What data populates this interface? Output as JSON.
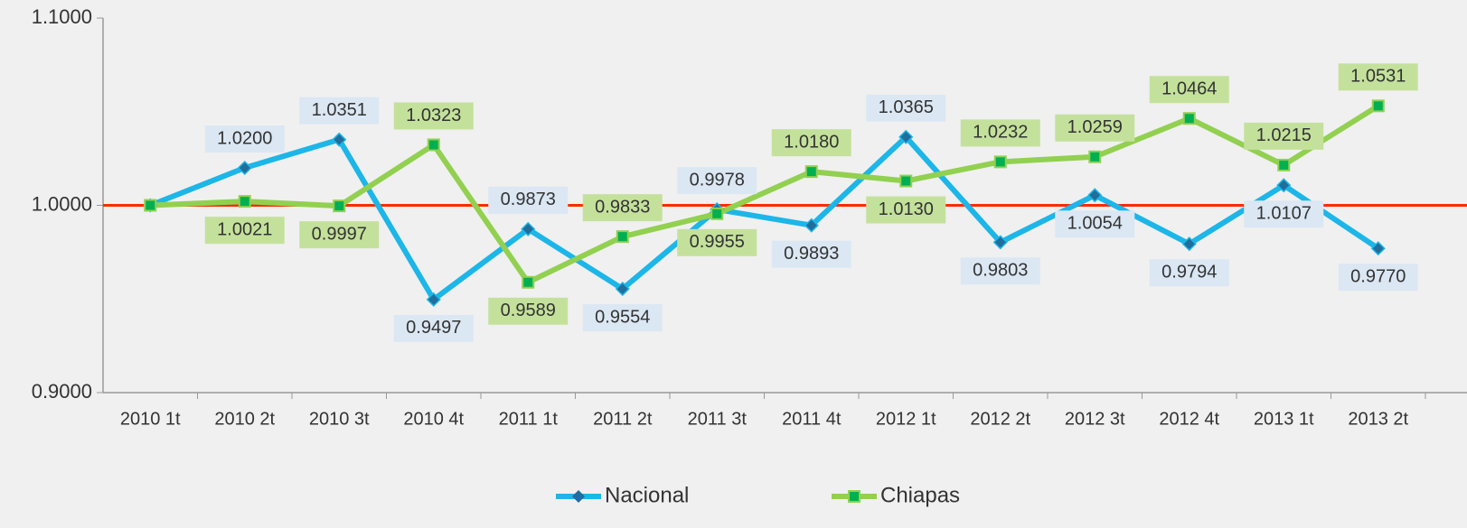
{
  "chart_data": {
    "type": "line",
    "categories": [
      "2010 1t",
      "2010 2t",
      "2010 3t",
      "2010 4t",
      "2011 1t",
      "2011 2t",
      "2011 3t",
      "2011 4t",
      "2012 1t",
      "2012 2t",
      "2012 3t",
      "2012 4t",
      "2013 1t",
      "2013 2t"
    ],
    "series": [
      {
        "name": "Nacional",
        "color": "#1cb6e8",
        "marker_color": "#1f6e9c",
        "label_background": "#dbe7f3",
        "values": [
          1.0,
          1.02,
          1.0351,
          0.9497,
          0.9873,
          0.9554,
          0.9978,
          0.9893,
          1.0365,
          0.9803,
          1.0054,
          0.9794,
          1.0107,
          0.977
        ],
        "value_labels": [
          null,
          "1.0200",
          "1.0351",
          "0.9497",
          "0.9873",
          "0.9554",
          "0.9978",
          "0.9893",
          "1.0365",
          "0.9803",
          "1.0054",
          "0.9794",
          "1.0107",
          "0.9770"
        ]
      },
      {
        "name": "Chiapas",
        "color": "#92d050",
        "marker_color": "#00b050",
        "label_background": "#c4e19c",
        "values": [
          1.0,
          1.0021,
          0.9997,
          1.0323,
          0.9589,
          0.9833,
          0.9955,
          1.018,
          1.013,
          1.0232,
          1.0259,
          1.0464,
          1.0215,
          1.0531
        ],
        "value_labels": [
          null,
          "1.0021",
          "0.9997",
          "1.0323",
          "0.9589",
          "0.9833",
          "0.9955",
          "1.0180",
          "1.0130",
          "1.0232",
          "1.0259",
          "1.0464",
          "1.0215",
          "1.0531"
        ]
      }
    ],
    "ylim": [
      0.9,
      1.1
    ],
    "yticks": [
      {
        "value": 0.9,
        "label": "0.9000"
      },
      {
        "value": 1.0,
        "label": "1.0000"
      },
      {
        "value": 1.1,
        "label": "1.1000"
      }
    ],
    "reference_line": {
      "value": 1.0,
      "color": "#ff2a00"
    },
    "legend": "bottom"
  }
}
